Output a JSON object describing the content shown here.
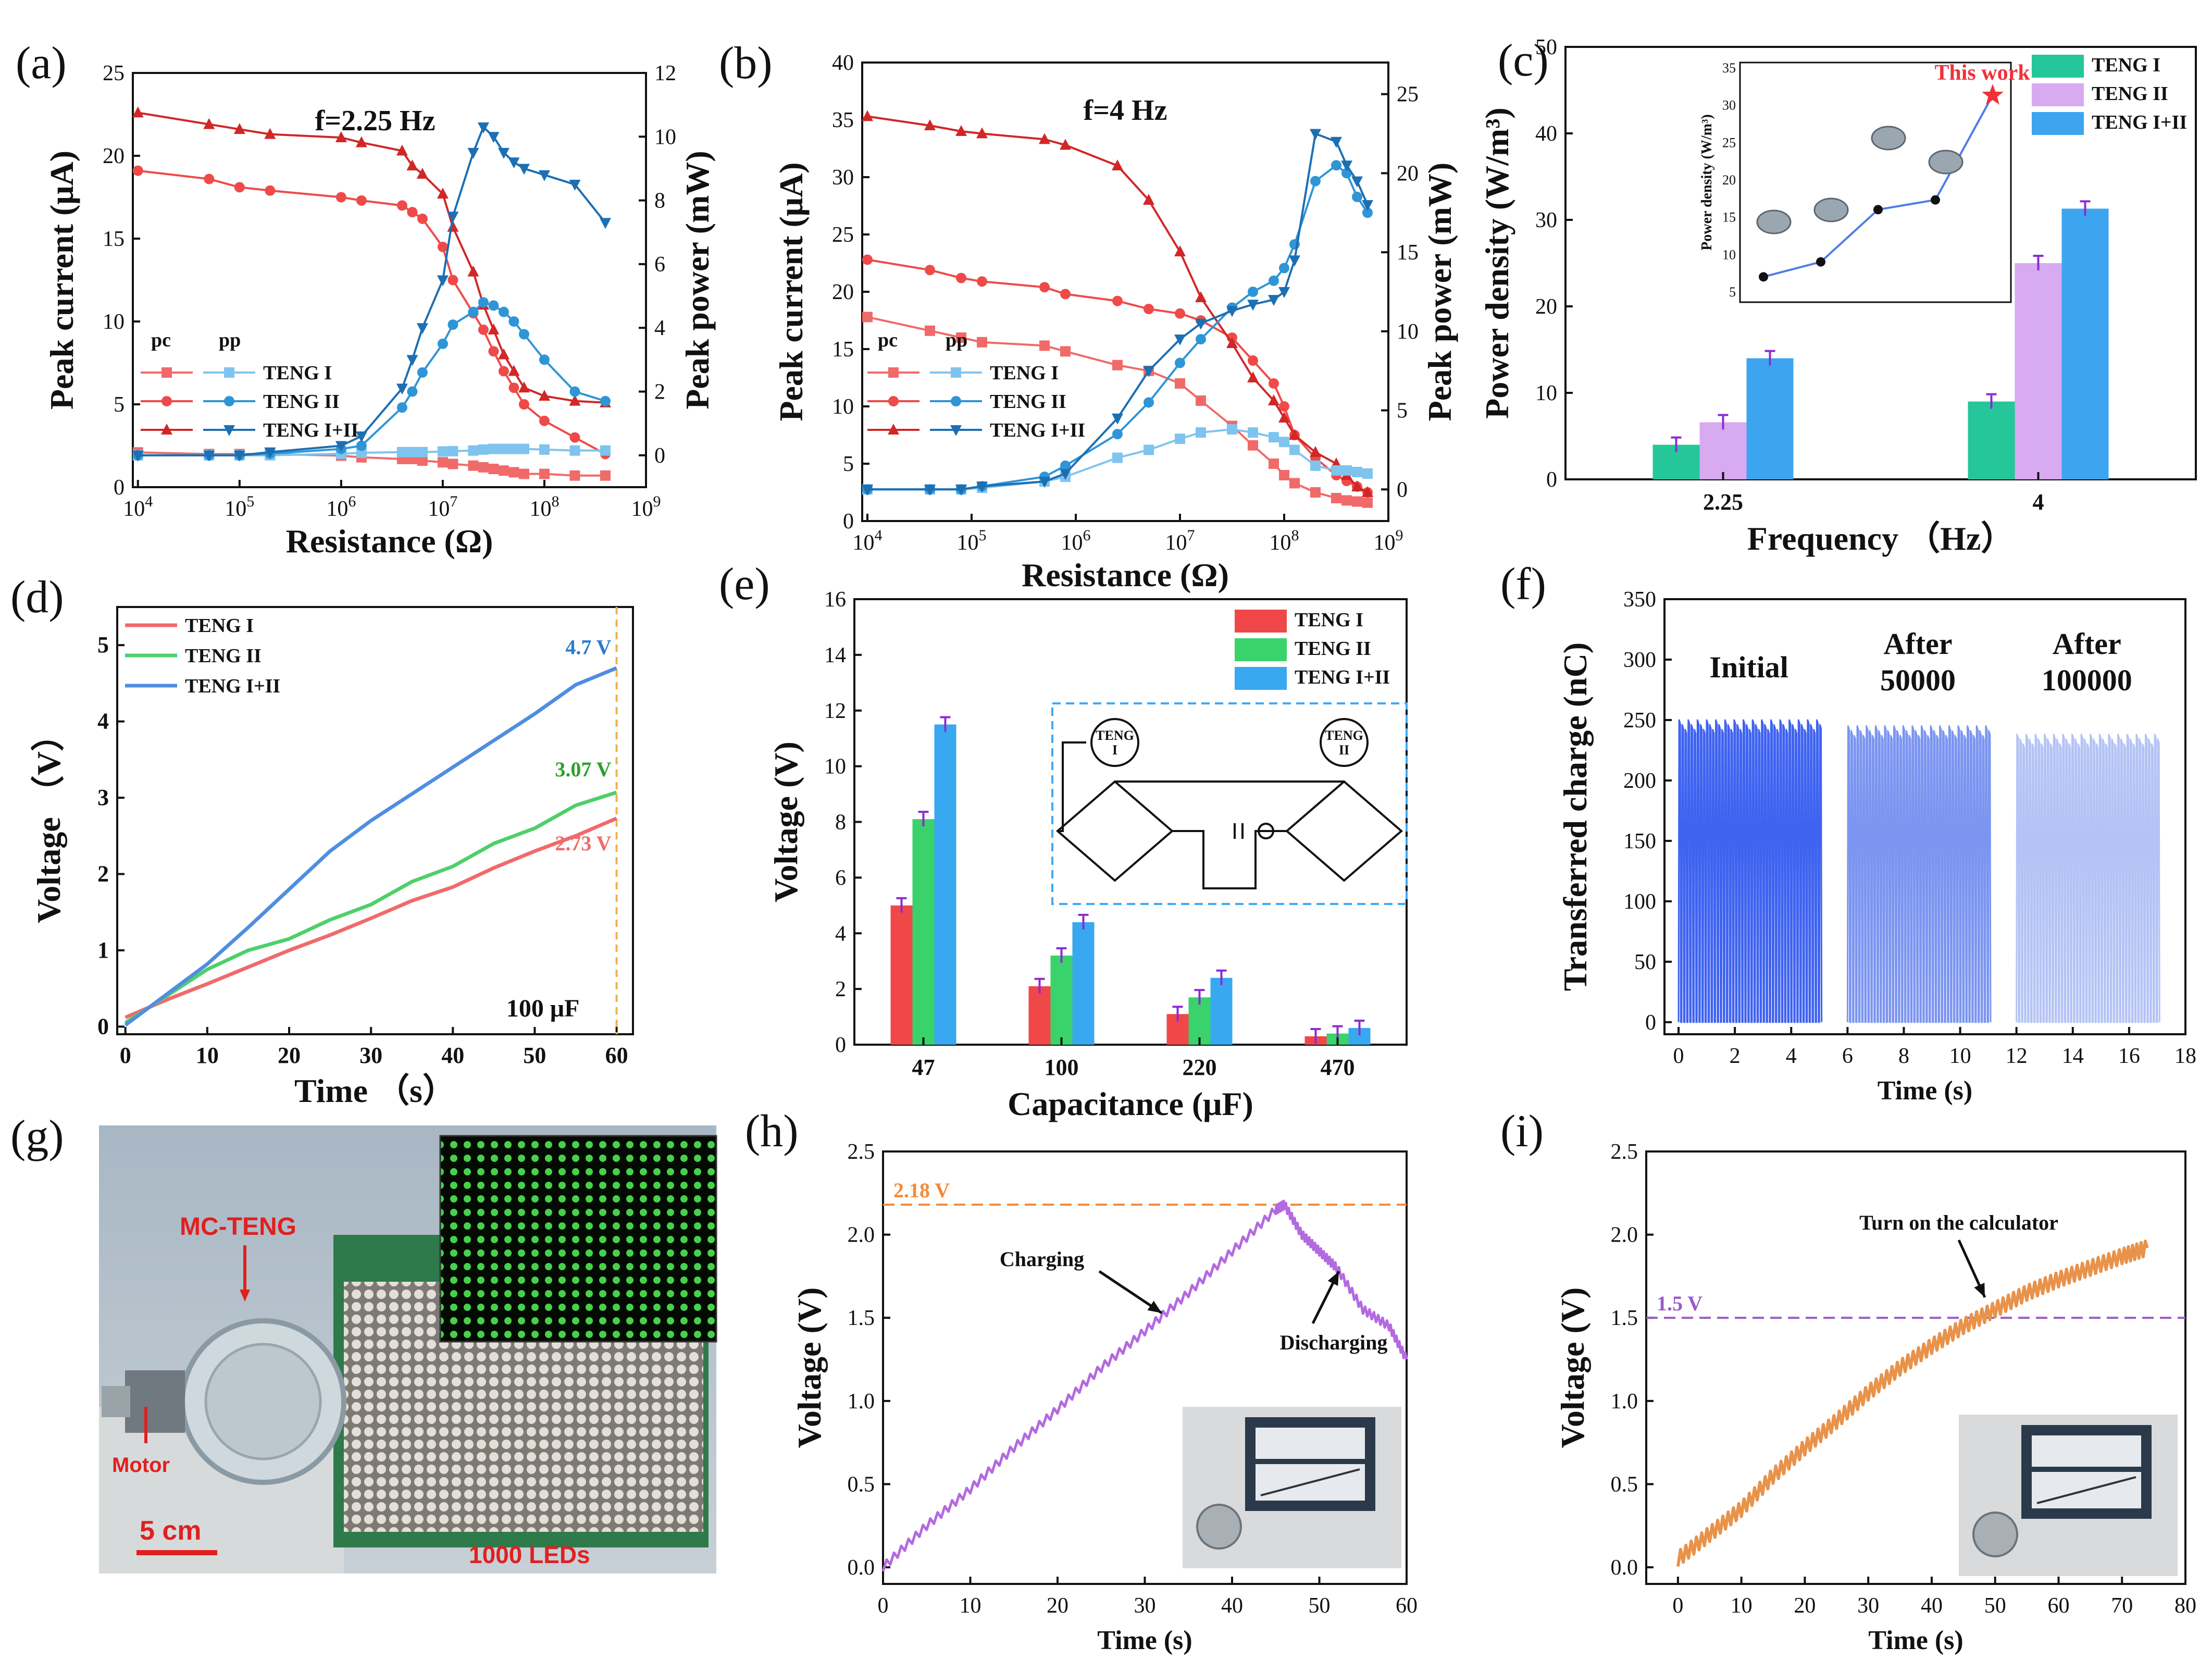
{
  "figure": {
    "domain": "Chart"
  },
  "chart_data": [
    {
      "panel": "(a)",
      "type": "line",
      "annotation": "f=2.25 Hz",
      "xlabel": "Resistance (Ω)",
      "ylabel_left": "Peak current (μA)",
      "ylabel_right": "Peak power (mW)",
      "x_log_ticks": [
        "10^4",
        "10^5",
        "10^6",
        "10^7",
        "10^8",
        "10^9"
      ],
      "x_exponents": [
        4,
        5,
        6,
        7,
        8,
        9
      ],
      "ylim_left": [
        0,
        25
      ],
      "yticks_left": [
        0,
        5,
        10,
        15,
        20,
        25
      ],
      "ylim_right": [
        -1,
        12
      ],
      "yticks_right": [
        0,
        2,
        4,
        6,
        8,
        10,
        12
      ],
      "legend_headers": [
        "pc",
        "pp"
      ],
      "legend_labels": [
        "TENG I",
        "TENG II",
        "TENG I+II"
      ],
      "x": [
        4,
        4.7,
        5,
        5.3,
        6,
        6.2,
        6.6,
        6.7,
        6.8,
        7,
        7.1,
        7.3,
        7.4,
        7.5,
        7.6,
        7.7,
        7.8,
        8,
        8.3,
        8.6
      ],
      "series": [
        {
          "name": "TENG I current",
          "axis": "left",
          "color": "#f06a6a",
          "marker": "square",
          "values": [
            2.1,
            2.0,
            2.0,
            2.0,
            1.9,
            1.8,
            1.7,
            1.7,
            1.6,
            1.5,
            1.4,
            1.3,
            1.2,
            1.1,
            1.0,
            0.9,
            0.8,
            0.8,
            0.7,
            0.7
          ]
        },
        {
          "name": "TENG II current",
          "axis": "left",
          "color": "#ef4a4a",
          "marker": "circle",
          "values": [
            19.1,
            18.6,
            18.1,
            17.9,
            17.5,
            17.3,
            17.0,
            16.6,
            16.2,
            14.5,
            12.5,
            10.5,
            9.5,
            8.2,
            7.0,
            6.0,
            5.0,
            4.0,
            3.0,
            2.0
          ]
        },
        {
          "name": "TENG I+II current",
          "axis": "left",
          "color": "#d12727",
          "marker": "triangle-up",
          "values": [
            22.6,
            21.9,
            21.6,
            21.3,
            21.1,
            20.8,
            20.3,
            19.4,
            18.9,
            17.7,
            15.7,
            13.0,
            11.0,
            9.5,
            8.0,
            7.0,
            6.0,
            5.5,
            5.2,
            5.1
          ]
        },
        {
          "name": "TENG I power",
          "axis": "right",
          "color": "#7fc4ef",
          "marker": "square",
          "values": [
            0.0,
            0.0,
            0.0,
            0.0,
            0.05,
            0.08,
            0.1,
            0.1,
            0.1,
            0.12,
            0.13,
            0.15,
            0.18,
            0.2,
            0.2,
            0.2,
            0.2,
            0.18,
            0.15,
            0.15
          ]
        },
        {
          "name": "TENG II power",
          "axis": "right",
          "color": "#2f95d6",
          "marker": "circle",
          "values": [
            0.0,
            0.0,
            0.0,
            0.05,
            0.2,
            0.3,
            1.5,
            2.0,
            2.6,
            3.5,
            4.1,
            4.5,
            4.8,
            4.7,
            4.5,
            4.2,
            3.8,
            3.0,
            2.0,
            1.7
          ]
        },
        {
          "name": "TENG I+II power",
          "axis": "right",
          "color": "#1c6fb3",
          "marker": "triangle-down",
          "values": [
            0.0,
            0.0,
            0.0,
            0.1,
            0.3,
            0.6,
            2.1,
            3.0,
            4.0,
            5.5,
            7.5,
            9.5,
            10.3,
            10.0,
            9.5,
            9.2,
            9.0,
            8.8,
            8.5,
            7.3
          ]
        }
      ]
    },
    {
      "panel": "(b)",
      "type": "line",
      "annotation": "f=4 Hz",
      "xlabel": "Resistance (Ω)",
      "ylabel_left": "Peak current (μA)",
      "ylabel_right": "Peak power (mW)",
      "x_log_ticks": [
        "10^4",
        "10^5",
        "10^6",
        "10^7",
        "10^8",
        "10^9"
      ],
      "x_exponents": [
        4,
        5,
        6,
        7,
        8,
        9
      ],
      "ylim_left": [
        0,
        40
      ],
      "yticks_left": [
        0,
        5,
        10,
        15,
        20,
        25,
        30,
        35,
        40
      ],
      "ylim_right": [
        -2,
        27
      ],
      "yticks_right": [
        0,
        5,
        10,
        15,
        20,
        25
      ],
      "legend_headers": [
        "pc",
        "pp"
      ],
      "legend_labels": [
        "TENG I",
        "TENG II",
        "TENG I+II"
      ],
      "x": [
        4,
        4.6,
        4.9,
        5.1,
        5.7,
        5.9,
        6.4,
        6.7,
        7.0,
        7.2,
        7.5,
        7.7,
        7.9,
        8.0,
        8.1,
        8.3,
        8.5,
        8.6,
        8.7,
        8.8
      ],
      "series": [
        {
          "name": "TENG I current",
          "axis": "left",
          "color": "#f06a6a",
          "marker": "square",
          "values": [
            17.8,
            16.6,
            16.0,
            15.6,
            15.3,
            14.8,
            13.6,
            13.1,
            12.0,
            10.5,
            8.3,
            6.6,
            5.0,
            4.0,
            3.3,
            2.5,
            2.0,
            1.8,
            1.7,
            1.6
          ]
        },
        {
          "name": "TENG II current",
          "axis": "left",
          "color": "#ef4a4a",
          "marker": "circle",
          "values": [
            22.8,
            21.9,
            21.2,
            20.9,
            20.4,
            19.8,
            19.2,
            18.5,
            18.1,
            17.5,
            16.0,
            14.0,
            12.0,
            10.0,
            7.5,
            5.5,
            4.0,
            3.5,
            3.0,
            2.5
          ]
        },
        {
          "name": "TENG I+II current",
          "axis": "left",
          "color": "#d12727",
          "marker": "triangle-up",
          "values": [
            35.3,
            34.5,
            34.0,
            33.8,
            33.3,
            32.8,
            31.0,
            28.0,
            23.5,
            19.5,
            15.5,
            12.5,
            10.5,
            9.0,
            7.5,
            6.0,
            5.0,
            4.0,
            3.0,
            2.5
          ]
        },
        {
          "name": "TENG I power",
          "axis": "right",
          "color": "#7fc4ef",
          "marker": "square",
          "values": [
            0.0,
            0.0,
            0.0,
            0.1,
            0.5,
            0.8,
            2.0,
            2.5,
            3.2,
            3.6,
            3.8,
            3.6,
            3.3,
            3.0,
            2.5,
            1.5,
            1.2,
            1.2,
            1.1,
            1.0
          ]
        },
        {
          "name": "TENG II power",
          "axis": "right",
          "color": "#2f95d6",
          "marker": "circle",
          "values": [
            0.0,
            0.0,
            0.0,
            0.2,
            0.8,
            1.5,
            3.5,
            5.5,
            8.0,
            9.5,
            11.5,
            12.5,
            13.2,
            14.0,
            15.5,
            19.5,
            20.5,
            20.0,
            18.5,
            17.5
          ]
        },
        {
          "name": "TENG I+II power",
          "axis": "right",
          "color": "#1c6fb3",
          "marker": "triangle-down",
          "values": [
            0.0,
            0.0,
            0.0,
            0.2,
            0.5,
            1.0,
            4.5,
            7.5,
            9.5,
            10.5,
            11.3,
            11.7,
            12.0,
            12.5,
            14.5,
            22.5,
            22.0,
            20.5,
            19.5,
            18.0
          ]
        }
      ]
    },
    {
      "panel": "(c)",
      "type": "bar",
      "xlabel": "Frequency （Hz）",
      "ylabel": "Power density (W/m³)",
      "ylim": [
        0,
        50
      ],
      "yticks": [
        0,
        10,
        20,
        30,
        40,
        50
      ],
      "categories": [
        "2.25",
        "4"
      ],
      "series": [
        {
          "name": "TENG I",
          "color": "#25c79a",
          "values": [
            4.0,
            9.0
          ]
        },
        {
          "name": "TENG II",
          "color": "#d8aaf0",
          "values": [
            6.6,
            25.0
          ]
        },
        {
          "name": "TENG I+II",
          "color": "#3da5f0",
          "values": [
            14.0,
            31.3
          ]
        }
      ],
      "inset": {
        "ylabel": "Power density (W/m³)",
        "yticks": [
          5,
          10,
          15,
          20,
          25,
          30,
          35
        ],
        "ylim": [
          5,
          35
        ],
        "points": [
          7.0,
          9.0,
          16.0,
          17.3,
          31.3
        ],
        "annotation": "This work"
      }
    },
    {
      "panel": "(d)",
      "type": "line",
      "xlabel": "Time （s）",
      "ylabel": "Voltage （V）",
      "xlim": [
        0,
        60
      ],
      "ylim": [
        -0.1,
        5.5
      ],
      "xticks": [
        0,
        10,
        20,
        30,
        40,
        50,
        60
      ],
      "yticks": [
        0,
        1,
        2,
        3,
        4,
        5
      ],
      "x": [
        0,
        5,
        10,
        15,
        20,
        25,
        30,
        35,
        40,
        45,
        50,
        55,
        60
      ],
      "series": [
        {
          "name": "TENG I",
          "color": "#f06a6a",
          "values": [
            0.12,
            0.35,
            0.56,
            0.78,
            1.0,
            1.2,
            1.42,
            1.65,
            1.83,
            2.08,
            2.3,
            2.5,
            2.73
          ]
        },
        {
          "name": "TENG II",
          "color": "#4fcf6a",
          "values": [
            0.05,
            0.4,
            0.75,
            1.0,
            1.15,
            1.4,
            1.6,
            1.9,
            2.1,
            2.4,
            2.6,
            2.9,
            3.07
          ]
        },
        {
          "name": "TENG I+II",
          "color": "#4f8ee0",
          "values": [
            0.02,
            0.42,
            0.82,
            1.3,
            1.8,
            2.3,
            2.7,
            3.05,
            3.4,
            3.75,
            4.1,
            4.48,
            4.7
          ]
        }
      ],
      "end_labels": [
        "4.7 V",
        "3.07 V",
        "2.73 V"
      ],
      "condition": "100 μF"
    },
    {
      "panel": "(e)",
      "type": "bar",
      "xlabel": "Capacitance (μF)",
      "ylabel": "Voltage (V)",
      "ylim": [
        0,
        16
      ],
      "yticks": [
        0,
        2,
        4,
        6,
        8,
        10,
        12,
        14,
        16
      ],
      "categories": [
        "47",
        "100",
        "220",
        "470"
      ],
      "series": [
        {
          "name": "TENG I",
          "color": "#f04848",
          "values": [
            5.0,
            2.1,
            1.1,
            0.3
          ]
        },
        {
          "name": "TENG II",
          "color": "#3ad26a",
          "values": [
            8.1,
            3.2,
            1.7,
            0.4
          ]
        },
        {
          "name": "TENG I+II",
          "color": "#38a8f0",
          "values": [
            11.5,
            4.4,
            2.4,
            0.6
          ]
        }
      ],
      "circuit_labels": [
        "TENG",
        "I",
        "TENG",
        "II"
      ]
    },
    {
      "panel": "(f)",
      "type": "line",
      "xlabel": "Time (s)",
      "ylabel": "Transferred charge (nC)",
      "xlim": [
        -0.5,
        18
      ],
      "ylim": [
        -10,
        350
      ],
      "xticks": [
        0,
        2,
        4,
        6,
        8,
        10,
        12,
        14,
        16,
        18
      ],
      "yticks": [
        0,
        50,
        100,
        150,
        200,
        250,
        300,
        350
      ],
      "segments": [
        {
          "label": "Initial",
          "x_start": 0,
          "x_end": 5,
          "peak": 250,
          "color": "#3f63f0"
        },
        {
          "label": "After 50000",
          "x_start": 6,
          "x_end": 11,
          "peak": 245,
          "color": "#7b95f0"
        },
        {
          "label": "After 100000",
          "x_start": 12,
          "x_end": 17,
          "peak": 238,
          "color": "#b4c3f5"
        }
      ],
      "segment_label_lines": [
        [
          "Initial"
        ],
        [
          "After",
          "50000"
        ],
        [
          "After",
          "100000"
        ]
      ]
    },
    {
      "panel": "(h)",
      "type": "line",
      "xlabel": "Time (s)",
      "ylabel": "Voltage (V)",
      "xlim": [
        0,
        60
      ],
      "ylim": [
        -0.1,
        2.5
      ],
      "xticks": [
        0,
        10,
        20,
        30,
        40,
        50,
        60
      ],
      "yticks": [
        0.0,
        0.5,
        1.0,
        1.5,
        2.0,
        2.5
      ],
      "x": [
        0,
        5,
        10,
        15,
        20,
        25,
        30,
        35,
        40,
        45,
        46,
        48,
        50,
        52,
        55,
        58,
        60
      ],
      "values": [
        0.0,
        0.25,
        0.47,
        0.72,
        0.95,
        1.2,
        1.42,
        1.65,
        1.9,
        2.15,
        2.18,
        2.0,
        1.9,
        1.8,
        1.55,
        1.45,
        1.25
      ],
      "color": "#b36ae0",
      "reference_line": {
        "value": 2.18,
        "label": "2.18 V",
        "color": "#f28a3a"
      },
      "annotations": [
        "Charging",
        "Discharging"
      ]
    },
    {
      "panel": "(i)",
      "type": "line",
      "xlabel": "Time (s)",
      "ylabel": "Voltage (V)",
      "xlim": [
        -5,
        80
      ],
      "ylim": [
        -0.1,
        2.5
      ],
      "xticks": [
        0,
        10,
        20,
        30,
        40,
        50,
        60,
        70,
        80
      ],
      "yticks": [
        0.0,
        0.5,
        1.0,
        1.5,
        2.0,
        2.5
      ],
      "x": [
        0,
        5,
        10,
        15,
        20,
        25,
        30,
        35,
        40,
        45,
        50,
        55,
        60,
        65,
        70,
        74
      ],
      "values": [
        0.05,
        0.2,
        0.35,
        0.55,
        0.72,
        0.88,
        1.05,
        1.2,
        1.33,
        1.45,
        1.55,
        1.65,
        1.73,
        1.8,
        1.87,
        1.92
      ],
      "color": "#e8924a",
      "reference_line": {
        "value": 1.5,
        "label": "1.5 V",
        "color": "#9b59c8"
      },
      "annotations": [
        "Turn on the calculator"
      ]
    }
  ],
  "panel_g": {
    "label": "(g)",
    "mc_teng": "MC-TENG",
    "motor": "Motor",
    "scale": "5 cm",
    "leds": "1000 LEDs"
  }
}
